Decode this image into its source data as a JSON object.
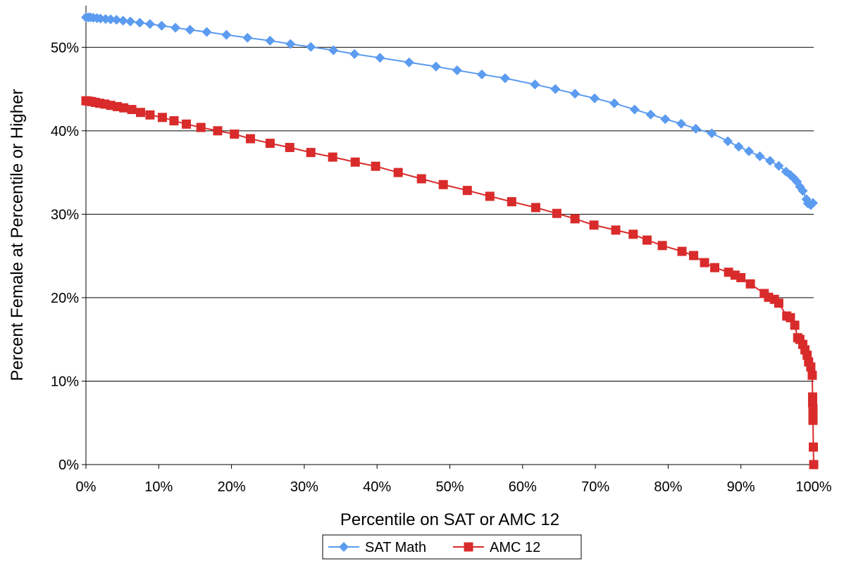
{
  "chart_data": {
    "type": "line",
    "title": "",
    "xlabel": "Percentile on SAT or AMC 12",
    "ylabel": "Percent Female at Percentile or Higher",
    "xlim": [
      0,
      100
    ],
    "ylim": [
      0,
      55
    ],
    "x_ticks": [
      0,
      10,
      20,
      30,
      40,
      50,
      60,
      70,
      80,
      90,
      100
    ],
    "x_tick_labels": [
      "0%",
      "10%",
      "20%",
      "30%",
      "40%",
      "50%",
      "60%",
      "70%",
      "80%",
      "90%",
      "100%"
    ],
    "y_ticks": [
      0,
      10,
      20,
      30,
      40,
      50
    ],
    "y_tick_labels": [
      "0%",
      "10%",
      "20%",
      "30%",
      "40%",
      "50%"
    ],
    "grid": "horizontal",
    "legend_position": "bottom",
    "series": [
      {
        "name": "SAT Math",
        "color": "#5b9bf0",
        "marker": "diamond",
        "points": [
          [
            0,
            53.6
          ],
          [
            0.3,
            53.6
          ],
          [
            0.6,
            53.6
          ],
          [
            1,
            53.55
          ],
          [
            1.5,
            53.5
          ],
          [
            2,
            53.45
          ],
          [
            2.7,
            53.4
          ],
          [
            3.4,
            53.35
          ],
          [
            4.2,
            53.3
          ],
          [
            5.1,
            53.2
          ],
          [
            6.1,
            53.1
          ],
          [
            7.4,
            52.95
          ],
          [
            8.8,
            52.8
          ],
          [
            10.4,
            52.6
          ],
          [
            12.3,
            52.35
          ],
          [
            14.3,
            52.1
          ],
          [
            16.6,
            51.85
          ],
          [
            19.3,
            51.5
          ],
          [
            22.2,
            51.15
          ],
          [
            25.3,
            50.8
          ],
          [
            28.1,
            50.4
          ],
          [
            30.9,
            50.05
          ],
          [
            34,
            49.65
          ],
          [
            36.9,
            49.2
          ],
          [
            40.4,
            48.75
          ],
          [
            44.4,
            48.2
          ],
          [
            48.1,
            47.7
          ],
          [
            51,
            47.25
          ],
          [
            54.4,
            46.75
          ],
          [
            57.6,
            46.3
          ],
          [
            61.7,
            45.55
          ],
          [
            64.5,
            45
          ],
          [
            67.2,
            44.45
          ],
          [
            69.9,
            43.9
          ],
          [
            72.6,
            43.3
          ],
          [
            75.4,
            42.55
          ],
          [
            77.6,
            41.95
          ],
          [
            79.6,
            41.4
          ],
          [
            81.8,
            40.85
          ],
          [
            83.8,
            40.25
          ],
          [
            86,
            39.7
          ],
          [
            88.2,
            38.75
          ],
          [
            89.7,
            38.1
          ],
          [
            91.1,
            37.55
          ],
          [
            92.6,
            36.95
          ],
          [
            94,
            36.4
          ],
          [
            95.2,
            35.8
          ],
          [
            96.2,
            35.1
          ],
          [
            96.8,
            34.7
          ],
          [
            97.3,
            34.3
          ],
          [
            97.7,
            33.9
          ],
          [
            98.1,
            33.3
          ],
          [
            98.5,
            32.8
          ],
          [
            99,
            31.8
          ],
          [
            99.2,
            31.3
          ],
          [
            99.6,
            31.1
          ],
          [
            99.9,
            31.35
          ]
        ]
      },
      {
        "name": "AMC 12",
        "color": "#d92b2b",
        "marker": "square",
        "points": [
          [
            0,
            43.6
          ],
          [
            0.4,
            43.55
          ],
          [
            0.8,
            43.5
          ],
          [
            1.3,
            43.4
          ],
          [
            1.9,
            43.3
          ],
          [
            2.6,
            43.2
          ],
          [
            3.4,
            43.05
          ],
          [
            4.3,
            42.9
          ],
          [
            5.2,
            42.75
          ],
          [
            6.3,
            42.55
          ],
          [
            7.5,
            42.2
          ],
          [
            8.8,
            41.9
          ],
          [
            10.5,
            41.6
          ],
          [
            12.1,
            41.2
          ],
          [
            13.8,
            40.8
          ],
          [
            15.8,
            40.4
          ],
          [
            18.1,
            40
          ],
          [
            20.4,
            39.6
          ],
          [
            22.6,
            39.05
          ],
          [
            25.3,
            38.5
          ],
          [
            28,
            38
          ],
          [
            30.9,
            37.4
          ],
          [
            33.9,
            36.85
          ],
          [
            37,
            36.25
          ],
          [
            39.8,
            35.75
          ],
          [
            42.9,
            35
          ],
          [
            46.1,
            34.25
          ],
          [
            49.1,
            33.55
          ],
          [
            52.4,
            32.85
          ],
          [
            55.5,
            32.15
          ],
          [
            58.5,
            31.5
          ],
          [
            61.8,
            30.8
          ],
          [
            64.7,
            30.1
          ],
          [
            67.2,
            29.45
          ],
          [
            69.8,
            28.7
          ],
          [
            72.8,
            28.1
          ],
          [
            75.2,
            27.6
          ],
          [
            77.1,
            26.9
          ],
          [
            79.2,
            26.25
          ],
          [
            81.9,
            25.55
          ],
          [
            83.5,
            25.05
          ],
          [
            85,
            24.2
          ],
          [
            86.4,
            23.6
          ],
          [
            88.3,
            23.05
          ],
          [
            89.2,
            22.7
          ],
          [
            90,
            22.4
          ],
          [
            91.3,
            21.65
          ],
          [
            93.2,
            20.5
          ],
          [
            93.8,
            20.05
          ],
          [
            94.6,
            19.8
          ],
          [
            95.2,
            19.35
          ],
          [
            96.3,
            17.8
          ],
          [
            96.8,
            17.6
          ],
          [
            97.4,
            16.7
          ],
          [
            97.8,
            15.2
          ],
          [
            98.1,
            15
          ],
          [
            98.5,
            14.4
          ],
          [
            98.8,
            13.75
          ],
          [
            99.1,
            13.1
          ],
          [
            99.3,
            12.3
          ],
          [
            99.6,
            11.7
          ],
          [
            99.8,
            10.7
          ],
          [
            99.85,
            8.1
          ],
          [
            99.85,
            7.4
          ],
          [
            99.9,
            6.7
          ],
          [
            99.9,
            5.9
          ],
          [
            99.9,
            5.3
          ],
          [
            99.95,
            2.1
          ],
          [
            100,
            0
          ],
          [
            100,
            0
          ]
        ]
      }
    ]
  }
}
